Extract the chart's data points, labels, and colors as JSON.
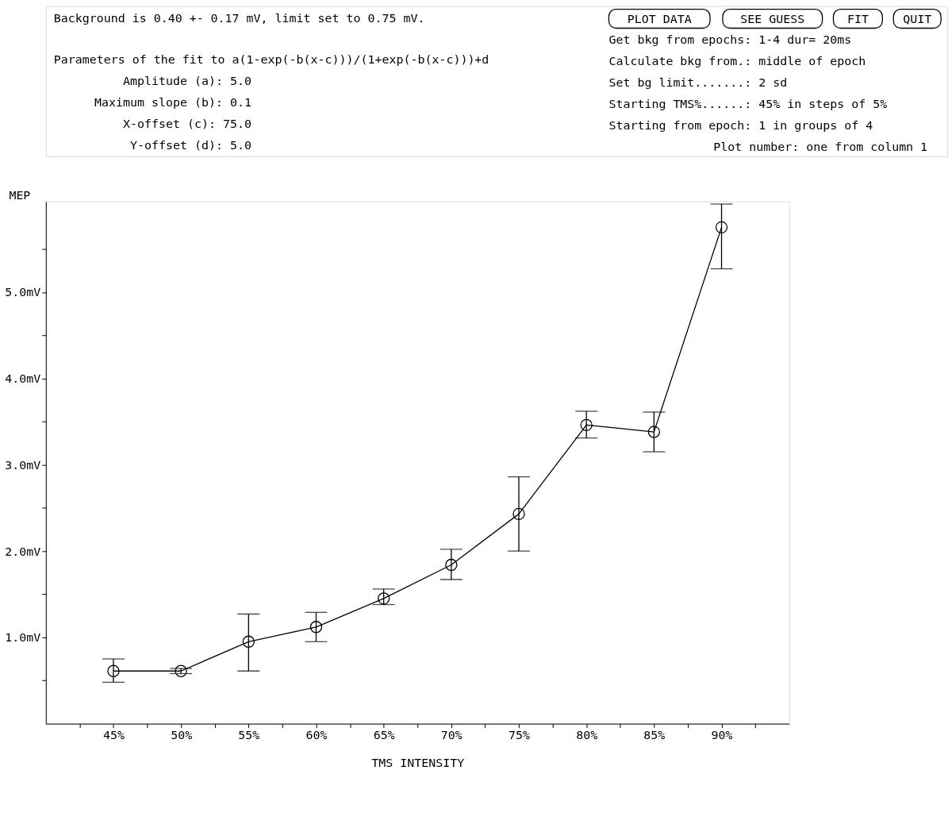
{
  "chart_data": {
    "type": "line",
    "xlabel": "TMS INTENSITY",
    "ylabel": "MEP",
    "x": [
      45,
      50,
      55,
      60,
      65,
      70,
      75,
      80,
      85,
      90
    ],
    "series": [
      {
        "color": "#000000",
        "values": [
          0.61,
          0.61,
          0.95,
          1.12,
          1.45,
          1.84,
          2.43,
          3.46,
          3.38,
          5.75
        ],
        "errors": [
          [
            0.48,
            0.75
          ],
          [
            0.58,
            0.64
          ],
          [
            0.61,
            1.27
          ],
          [
            0.95,
            1.29
          ],
          [
            1.38,
            1.56
          ],
          [
            1.67,
            2.02
          ],
          [
            2.0,
            2.86
          ],
          [
            3.31,
            3.62
          ],
          [
            3.15,
            3.61
          ],
          [
            5.27,
            6.02
          ]
        ]
      }
    ],
    "xlim": [
      40,
      95
    ],
    "ylim": [
      0,
      6.05
    ],
    "xticks": [
      {
        "value": 42.5,
        "label": null
      },
      {
        "value": 45,
        "label": "45%"
      },
      {
        "value": 47.5,
        "label": null
      },
      {
        "value": 50,
        "label": "50%"
      },
      {
        "value": 52.5,
        "label": null
      },
      {
        "value": 55,
        "label": "55%"
      },
      {
        "value": 57.5,
        "label": null
      },
      {
        "value": 60,
        "label": "60%"
      },
      {
        "value": 62.5,
        "label": null
      },
      {
        "value": 65,
        "label": "65%"
      },
      {
        "value": 67.5,
        "label": null
      },
      {
        "value": 70,
        "label": "70%"
      },
      {
        "value": 72.5,
        "label": null
      },
      {
        "value": 75,
        "label": "75%"
      },
      {
        "value": 77.5,
        "label": null
      },
      {
        "value": 80,
        "label": "80%"
      },
      {
        "value": 82.5,
        "label": null
      },
      {
        "value": 85,
        "label": "85%"
      },
      {
        "value": 87.5,
        "label": null
      },
      {
        "value": 90,
        "label": "90%"
      },
      {
        "value": 92.5,
        "label": null
      }
    ],
    "yticks": [
      {
        "value": 0.5,
        "label": null
      },
      {
        "value": 1,
        "label": "1.0mV"
      },
      {
        "value": 1.5,
        "label": null
      },
      {
        "value": 2,
        "label": "2.0mV"
      },
      {
        "value": 2.5,
        "label": null
      },
      {
        "value": 3,
        "label": "3.0mV"
      },
      {
        "value": 3.5,
        "label": null
      },
      {
        "value": 4,
        "label": "4.0mV"
      },
      {
        "value": 4.5,
        "label": null
      },
      {
        "value": 5,
        "label": "5.0mV"
      },
      {
        "value": 5.5,
        "label": null
      }
    ],
    "marker": "circle",
    "line_style": "solid",
    "grid": false,
    "annotations": [
      "Background is 0.40 +- 0.17 mV, limit set to 0.75 mV.",
      "Parameters of the fit to a(1-exp(-b(x-c)))/(1+exp(-b(x-c)))+d",
      "Amplitude (a): 5.0",
      "Maximum slope (b): 0.1",
      "X-offset (c): 75.0",
      "Y-offset (d): 5.0",
      "PLOT DATA",
      "SEE GUESS",
      "FIT",
      "QUIT",
      "Get bkg from epochs: 1-4     dur= 20ms",
      "Calculate bkg from.: middle of epoch",
      "Set bg limit.......: 2 sd",
      "Starting TMS%......: 45% in steps of 5%",
      "Starting from epoch: 1  in groups of 4",
      "Plot number: one  from column 1"
    ]
  }
}
